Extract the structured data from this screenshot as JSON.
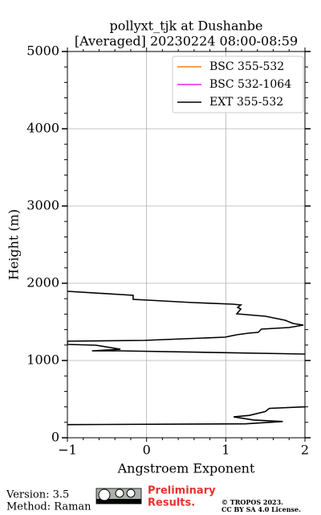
{
  "chart_data": {
    "type": "line",
    "title": "pollyxt_tjk at Dushanbe",
    "subtitle": "[Averaged] 20230224 08:00-08:59",
    "xlabel": "Angstroem Exponent",
    "ylabel": "Height (m)",
    "y": [
      170,
      180,
      210,
      230,
      270,
      290,
      340,
      380,
      400,
      700,
      1083,
      1125,
      1125,
      1146,
      1198,
      1208,
      1250,
      1260,
      1302,
      1333,
      1354,
      1365,
      1406,
      1427,
      1458,
      1479,
      1521,
      1542,
      1573,
      1604,
      1667,
      1688,
      1719,
      1729,
      1750,
      1781,
      1792,
      1844,
      1854,
      1896
    ],
    "series": [
      {
        "name": "BSC 355-532",
        "color": "#ff7f0e",
        "values": [
          null,
          null,
          null,
          null,
          null,
          null,
          null,
          null,
          null,
          null,
          null,
          null,
          null,
          null,
          null,
          null,
          null,
          null,
          null,
          null,
          null,
          null,
          null,
          null,
          null,
          null,
          null,
          null,
          null,
          null,
          null,
          null,
          null,
          null,
          null,
          null,
          null,
          null,
          null,
          null
        ]
      },
      {
        "name": "BSC 532-1064",
        "color": "#ee22ee",
        "values": [
          null,
          null,
          null,
          null,
          null,
          null,
          null,
          null,
          null,
          null,
          null,
          null,
          null,
          null,
          null,
          null,
          null,
          null,
          null,
          null,
          null,
          null,
          null,
          null,
          null,
          null,
          null,
          null,
          null,
          null,
          null,
          null,
          null,
          null,
          null,
          null,
          null,
          null,
          null,
          null
        ]
      },
      {
        "name": "EXT 355-532",
        "color": "#000000",
        "values": [
          -1,
          1.25,
          1.72,
          1.35,
          1.1,
          1.3,
          1.5,
          1.55,
          2.0,
          null,
          2.0,
          -0.33,
          -0.69,
          -0.33,
          -0.64,
          -1,
          -1,
          -0.03,
          0.99,
          1.14,
          1.29,
          1.41,
          1.45,
          1.8,
          1.98,
          1.85,
          1.75,
          1.65,
          1.5,
          1.14,
          1.19,
          1.15,
          1.19,
          1.09,
          0.58,
          0.02,
          -0.17,
          -0.17,
          -0.33,
          -1
        ]
      }
    ],
    "xlim": [
      -1,
      2
    ],
    "xticks": [
      {
        "value": -1,
        "label": "−1"
      },
      0,
      1,
      2
    ],
    "ylim": [
      0,
      5000
    ],
    "yticks": [
      0,
      1000,
      2000,
      3000,
      4000,
      5000
    ],
    "grid": true,
    "legend": "upper right"
  },
  "footer": {
    "version": "Version: 3.5",
    "method": "Method: Raman",
    "notice": "Preliminary",
    "notice2": "Results.",
    "copyright": "© TROPOS 2023.",
    "license": "CC BY SA 4.0 License."
  }
}
